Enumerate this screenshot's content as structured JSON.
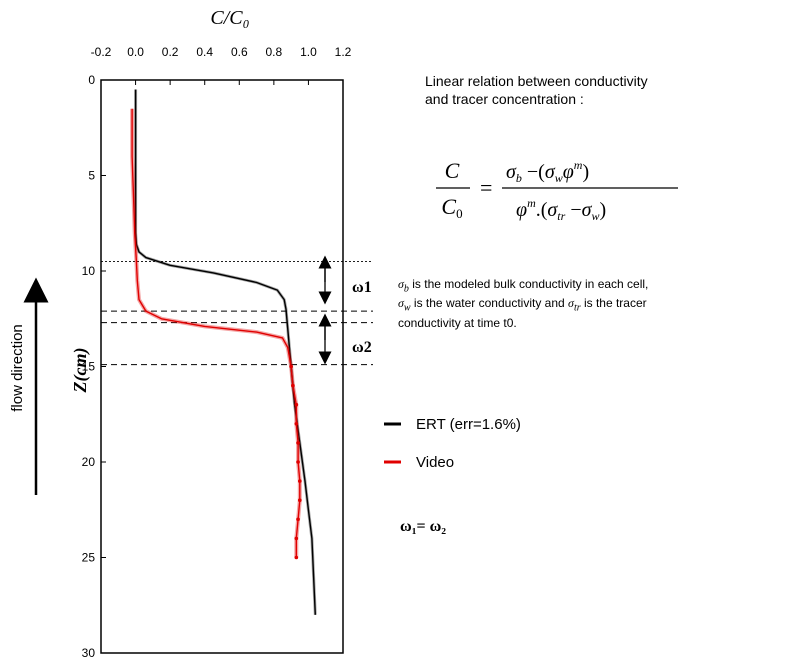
{
  "chart_data": {
    "type": "line",
    "xlabel": "C/C₀",
    "ylabel": "Z(cm)",
    "x_ticks": [
      "-0.2",
      "0.0",
      "0.2",
      "0.4",
      "0.6",
      "0.8",
      "1.0",
      "1.2"
    ],
    "y_ticks": [
      "0",
      "5",
      "10",
      "15",
      "20",
      "25",
      "30"
    ],
    "xlim": [
      -0.2,
      1.2
    ],
    "ylim": [
      0,
      30
    ],
    "y_inverted": true,
    "legend_position": "right",
    "series": [
      {
        "name": "ERT (err=1.6%)",
        "color": "#000000",
        "points": [
          [
            0.0,
            0.5
          ],
          [
            0.0,
            5.0
          ],
          [
            0.0,
            8.0
          ],
          [
            0.005,
            8.6
          ],
          [
            0.02,
            9.0
          ],
          [
            0.06,
            9.3
          ],
          [
            0.2,
            9.7
          ],
          [
            0.45,
            10.1
          ],
          [
            0.7,
            10.6
          ],
          [
            0.82,
            11.0
          ],
          [
            0.86,
            11.5
          ],
          [
            0.87,
            12.0
          ],
          [
            0.88,
            13.0
          ],
          [
            0.89,
            14.0
          ],
          [
            0.9,
            15.0
          ],
          [
            0.92,
            17.0
          ],
          [
            0.95,
            19.0
          ],
          [
            0.98,
            21.0
          ],
          [
            1.0,
            22.5
          ],
          [
            1.02,
            24.0
          ],
          [
            1.03,
            26.0
          ],
          [
            1.04,
            28.0
          ]
        ]
      },
      {
        "name": "Video",
        "color": "#e00000",
        "points": [
          [
            -0.02,
            1.5
          ],
          [
            -0.02,
            4.0
          ],
          [
            -0.01,
            6.5
          ],
          [
            -0.005,
            8.0
          ],
          [
            0.0,
            8.8
          ],
          [
            0.005,
            9.5
          ],
          [
            0.01,
            10.5
          ],
          [
            0.02,
            11.5
          ],
          [
            0.06,
            12.1
          ],
          [
            0.15,
            12.5
          ],
          [
            0.4,
            12.9
          ],
          [
            0.7,
            13.2
          ],
          [
            0.85,
            13.5
          ],
          [
            0.88,
            14.0
          ],
          [
            0.9,
            15.0
          ],
          [
            0.91,
            16.0
          ],
          [
            0.93,
            17.0
          ],
          [
            0.93,
            18.0
          ],
          [
            0.94,
            19.0
          ],
          [
            0.94,
            20.0
          ],
          [
            0.95,
            21.0
          ],
          [
            0.95,
            22.0
          ],
          [
            0.94,
            23.0
          ],
          [
            0.93,
            24.0
          ],
          [
            0.93,
            25.0
          ]
        ]
      }
    ],
    "reference_lines_z": [
      9.5,
      12.1,
      12.7,
      14.9
    ],
    "annotations": [
      "ω1",
      "ω2"
    ]
  },
  "side_label": "flow direction",
  "text": {
    "relation_line1": "Linear relation between conductivity",
    "relation_line2": "and tracer concentration :",
    "sym_line1": " is the modeled bulk conductivity in each cell,",
    "sym_line2a": " is the water conductivity and ",
    "sym_line2b": " is the tracer",
    "sym_line3": "conductivity at time t0.",
    "equality": "ω₁= ω₂"
  },
  "colors": {
    "ert": "#000000",
    "video": "#e00000"
  }
}
